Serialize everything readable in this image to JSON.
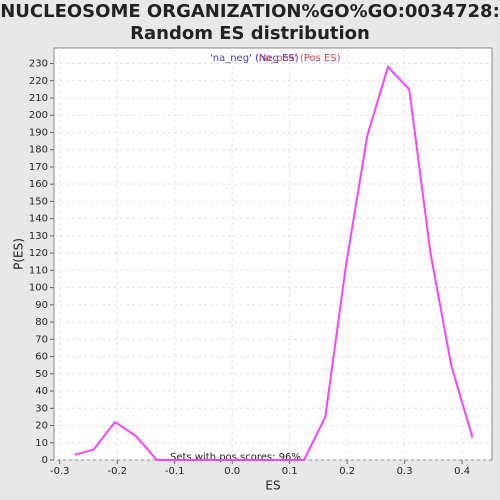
{
  "chart_data": {
    "type": "line",
    "title": "NUCLEOSOME ORGANIZATION%GO%GO:0034728: Random ES distribution",
    "x_label": "ES",
    "y_label": "P(ES)",
    "legend": [
      {
        "label": "'na_neg' (Neg ES)",
        "color": "#4040c0"
      },
      {
        "label": "'na_pos' (Pos ES)",
        "color": "#e04050"
      }
    ],
    "annotation": "Sets with pos scores: 96%",
    "x": [
      -0.274,
      -0.241,
      -0.204,
      -0.168,
      -0.131,
      0.125,
      0.162,
      0.198,
      0.235,
      0.271,
      0.308,
      0.345,
      0.381,
      0.418
    ],
    "series": [
      {
        "name": null,
        "color": "#ff40ff",
        "values": [
          3,
          6,
          22,
          14,
          0,
          0,
          25,
          113,
          188,
          228,
          215,
          120,
          55,
          13
        ]
      }
    ],
    "xlim": [
      -0.31,
      0.452
    ],
    "ylim": [
      0,
      239
    ],
    "xticks": [
      -0.3,
      -0.2,
      -0.1,
      {
        "value": 0,
        "label": "0.0"
      },
      0.1,
      0.2,
      0.3,
      0.4
    ],
    "yticks": [
      0,
      10,
      20,
      30,
      40,
      50,
      60,
      70,
      80,
      90,
      100,
      110,
      120,
      130,
      140,
      150,
      160,
      170,
      180,
      190,
      200,
      210,
      220,
      230
    ],
    "grid": true
  }
}
